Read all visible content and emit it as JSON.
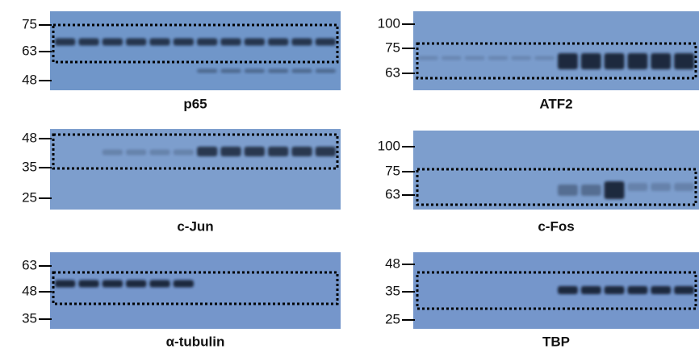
{
  "panels": [
    {
      "label": "p65",
      "markers": [
        "75",
        "63",
        "48"
      ]
    },
    {
      "label": "ATF2",
      "markers": [
        "100",
        "75",
        "63"
      ]
    },
    {
      "label": "c-Jun",
      "markers": [
        "48",
        "35",
        "25"
      ]
    },
    {
      "label": "c-Fos",
      "markers": [
        "100",
        "75",
        "63"
      ]
    },
    {
      "label": "α-tubulin",
      "markers": [
        "63",
        "48",
        "35"
      ]
    },
    {
      "label": "TBP",
      "markers": [
        "48",
        "35",
        "25"
      ]
    }
  ]
}
